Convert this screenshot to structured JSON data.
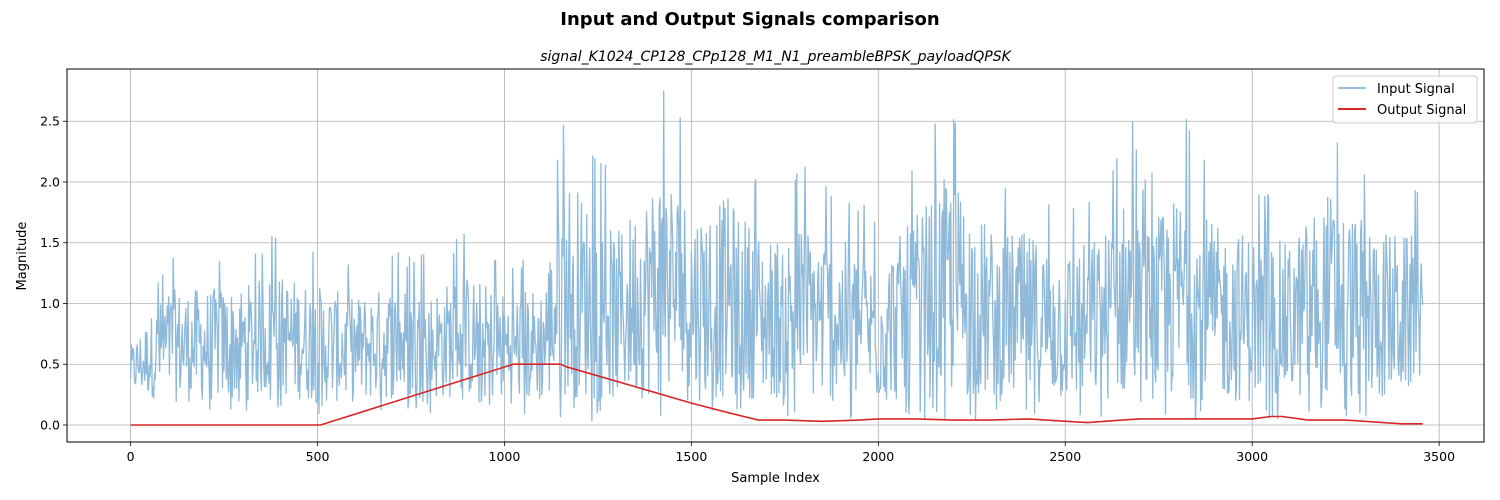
{
  "chart_data": {
    "type": "line",
    "title": "Input and Output Signals comparison",
    "subtitle": "signal_K1024_CP128_CPp128_M1_N1_preambleBPSK_payloadQPSK",
    "xlabel": "Sample Index",
    "ylabel": "Magnitude",
    "xlim": [
      -170,
      3620
    ],
    "ylim": [
      -0.14,
      2.93
    ],
    "x_ticks": [
      0,
      500,
      1000,
      1500,
      2000,
      2500,
      3000,
      3500
    ],
    "y_ticks": [
      0.0,
      0.5,
      1.0,
      1.5,
      2.0,
      2.5
    ],
    "x_tick_labels": [
      "0",
      "500",
      "1000",
      "1500",
      "2000",
      "2500",
      "3000",
      "3500"
    ],
    "y_tick_labels": [
      "0.0",
      "0.5",
      "1.0",
      "1.5",
      "2.0",
      "2.5"
    ],
    "grid": true,
    "legend_position": "top-right",
    "series": [
      {
        "name": "Input Signal",
        "color": "#8fb9d9",
        "style": "noisy magnitude trace, 3456 samples",
        "x": [
          0,
          100,
          200,
          300,
          385,
          500,
          600,
          700,
          800,
          890,
          1000,
          1100,
          1165,
          1250,
          1300,
          1425,
          1500,
          1600,
          1700,
          1800,
          1900,
          2000,
          2100,
          2190,
          2300,
          2400,
          2500,
          2600,
          2685,
          2700,
          2820,
          2900,
          3000,
          3100,
          3200,
          3300,
          3400,
          3456
        ],
        "peaks": [
          0.78,
          1.42,
          1.43,
          1.46,
          1.58,
          1.47,
          1.34,
          1.46,
          1.4,
          1.58,
          1.4,
          1.47,
          2.69,
          2.26,
          2.02,
          2.8,
          2.35,
          2.41,
          1.97,
          2.14,
          1.97,
          1.74,
          2.21,
          2.69,
          2.08,
          2.03,
          1.87,
          2.02,
          2.57,
          1.99,
          2.55,
          2.1,
          2.05,
          1.92,
          2.51,
          2.16,
          2.02,
          1.94
        ],
        "troughs": [
          0.22,
          0.1,
          0.09,
          0.1,
          0.15,
          0.08,
          0.1,
          0.12,
          0.1,
          0.13,
          0.09,
          0.07,
          0.06,
          0.02,
          0.06,
          0.05,
          0.03,
          0.06,
          0.08,
          0.05,
          0.04,
          0.04,
          0.06,
          0.03,
          0.05,
          0.06,
          0.04,
          0.06,
          0.05,
          0.05,
          0.04,
          0.05,
          0.04,
          0.06,
          0.05,
          0.04,
          0.06,
          0.25
        ]
      },
      {
        "name": "Output Signal",
        "color": "#d62728",
        "x": [
          0,
          508,
          1024,
          1150,
          1165,
          1300,
          1400,
          1500,
          1600,
          1680,
          1750,
          1850,
          1950,
          2000,
          2100,
          2200,
          2300,
          2400,
          2450,
          2500,
          2560,
          2650,
          2700,
          2800,
          2900,
          3000,
          3050,
          3080,
          3150,
          3250,
          3350,
          3400,
          3456
        ],
        "y": [
          0.0,
          0.0,
          0.5,
          0.5,
          0.48,
          0.36,
          0.27,
          0.18,
          0.1,
          0.04,
          0.04,
          0.03,
          0.04,
          0.05,
          0.05,
          0.04,
          0.04,
          0.05,
          0.04,
          0.03,
          0.02,
          0.04,
          0.05,
          0.05,
          0.05,
          0.05,
          0.07,
          0.07,
          0.04,
          0.04,
          0.02,
          0.01,
          0.01
        ]
      }
    ]
  }
}
